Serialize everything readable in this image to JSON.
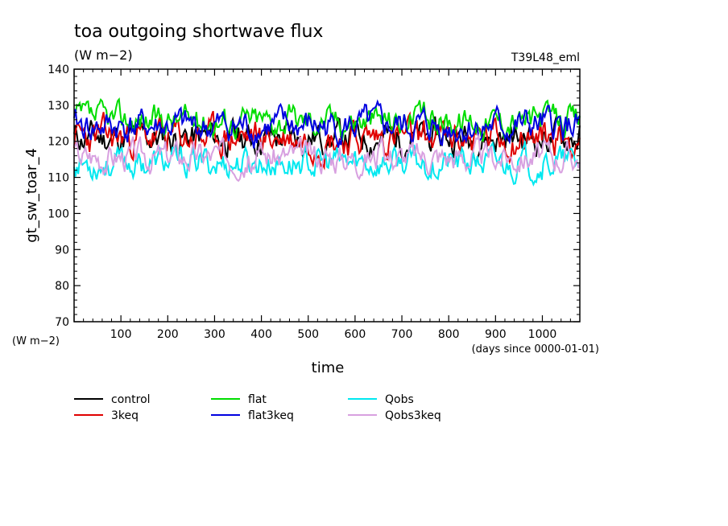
{
  "title": "toa outgoing shortwave flux",
  "units": "(W m−2)",
  "run_label": "T39L48_eml",
  "y_units_note": "(W m−2)",
  "x_units_note": "(days since 0000-01-01)",
  "chart_data": {
    "type": "line",
    "title": "toa outgoing shortwave flux",
    "xlabel": "time",
    "ylabel": "gt_sw_toar_4",
    "xlim": [
      0,
      1080
    ],
    "ylim": [
      70,
      140
    ],
    "xticks": [
      100,
      200,
      300,
      400,
      500,
      600,
      700,
      800,
      900,
      1000
    ],
    "yticks": [
      70,
      80,
      90,
      100,
      110,
      120,
      130,
      140
    ],
    "legend_position": "bottom",
    "series": [
      {
        "name": "control",
        "color": "#000000",
        "mean": 121,
        "amp": 5,
        "seed": 11
      },
      {
        "name": "3keq",
        "color": "#e00000",
        "mean": 121,
        "amp": 5.5,
        "seed": 23
      },
      {
        "name": "flat",
        "color": "#00dd00",
        "mean": 126,
        "amp": 4.5,
        "seed": 37
      },
      {
        "name": "flat3keq",
        "color": "#0000e0",
        "mean": 124,
        "amp": 5,
        "seed": 41
      },
      {
        "name": "Qobs",
        "color": "#00e8f0",
        "mean": 114,
        "amp": 4.5,
        "seed": 53
      },
      {
        "name": "Qobs3keq",
        "color": "#d8a0e0",
        "mean": 116,
        "amp": 4.5,
        "seed": 67
      }
    ]
  }
}
